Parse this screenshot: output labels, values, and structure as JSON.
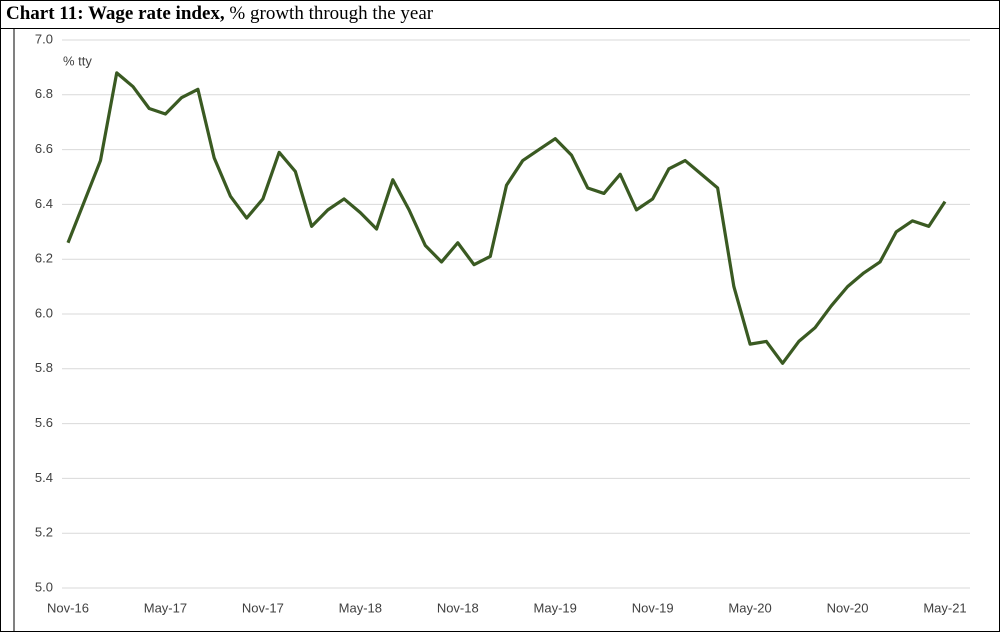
{
  "chart_data": {
    "type": "line",
    "title": "Chart 11: Wage rate index,",
    "subtitle": "% growth through the year",
    "y_label": "% tty",
    "categories": [
      "Nov-16",
      null,
      null,
      null,
      null,
      null,
      "May-17",
      null,
      null,
      null,
      null,
      null,
      "Nov-17",
      null,
      null,
      null,
      null,
      null,
      "May-18",
      null,
      null,
      null,
      null,
      null,
      "Nov-18",
      null,
      null,
      null,
      null,
      null,
      "May-19",
      null,
      null,
      null,
      null,
      null,
      "Nov-19",
      null,
      null,
      null,
      null,
      null,
      "May-20",
      null,
      null,
      null,
      null,
      null,
      "Nov-20",
      null,
      null,
      null,
      null,
      null,
      "May-21"
    ],
    "series": [
      {
        "name": "Wage rate index",
        "color": "#3a5a22",
        "values": [
          6.26,
          6.41,
          6.56,
          6.88,
          6.83,
          6.75,
          6.73,
          6.79,
          6.82,
          6.57,
          6.43,
          6.35,
          6.42,
          6.59,
          6.52,
          6.32,
          6.38,
          6.42,
          6.37,
          6.31,
          6.49,
          6.38,
          6.25,
          6.19,
          6.26,
          6.18,
          6.21,
          6.47,
          6.56,
          6.6,
          6.64,
          6.58,
          6.46,
          6.44,
          6.51,
          6.38,
          6.42,
          6.53,
          6.56,
          6.51,
          6.46,
          6.1,
          5.89,
          5.9,
          5.82,
          5.9,
          5.95,
          6.03,
          6.1,
          6.15,
          6.19,
          6.3,
          6.34,
          6.32,
          6.41
        ]
      }
    ],
    "ylim": [
      5.0,
      7.0
    ],
    "yticks": [
      {
        "value": 5.0,
        "label": "5.0"
      },
      5.2,
      5.4,
      5.6,
      5.8,
      {
        "value": 6.0,
        "label": "6.0"
      },
      6.2,
      6.4,
      6.6,
      6.8,
      {
        "value": 7.0,
        "label": "7.0"
      }
    ],
    "grid": true
  }
}
